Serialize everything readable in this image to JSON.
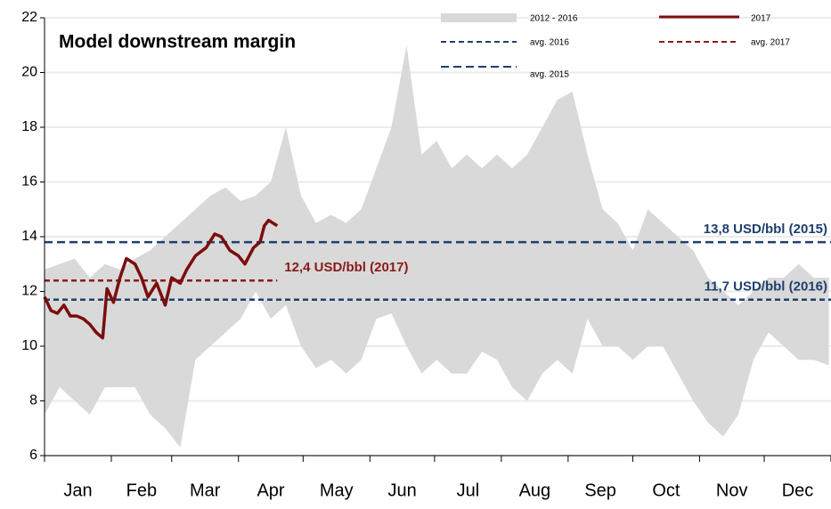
{
  "chart_data": {
    "type": "range_area",
    "title": "Model downstream margin",
    "ylim": [
      6,
      22
    ],
    "yticks": [
      6,
      8,
      10,
      12,
      14,
      16,
      18,
      20,
      22
    ],
    "xlim": [
      0,
      365
    ],
    "xticks": [
      0,
      31,
      59,
      90,
      120,
      151,
      181,
      212,
      243,
      273,
      304,
      334,
      365
    ],
    "categories": [
      "Jan",
      "Feb",
      "Mar",
      "Apr",
      "May",
      "Jun",
      "Jul",
      "Aug",
      "Sep",
      "Oct",
      "Nov",
      "Dec"
    ],
    "grid": true,
    "band": {
      "name": "2012 - 2016",
      "color": "#d9d9d9",
      "x": [
        0,
        7,
        14,
        21,
        28,
        35,
        42,
        49,
        56,
        63,
        70,
        77,
        84,
        91,
        98,
        105,
        112,
        119,
        126,
        133,
        140,
        147,
        154,
        161,
        168,
        175,
        182,
        189,
        196,
        203,
        210,
        217,
        224,
        231,
        238,
        245,
        252,
        259,
        266,
        273,
        280,
        287,
        294,
        301,
        308,
        315,
        322,
        329,
        336,
        343,
        350,
        357,
        364
      ],
      "upper": [
        12.8,
        13.0,
        13.2,
        12.5,
        13.0,
        12.8,
        13.2,
        13.5,
        14.0,
        14.5,
        15.0,
        15.5,
        15.8,
        15.3,
        15.5,
        16.0,
        18.0,
        15.5,
        14.5,
        14.8,
        14.5,
        15.0,
        16.5,
        18.0,
        21.0,
        17.0,
        17.5,
        16.5,
        17.0,
        16.5,
        17.0,
        16.5,
        17.0,
        18.0,
        19.0,
        19.3,
        17.0,
        15.0,
        14.5,
        13.5,
        15.0,
        14.5,
        14.0,
        13.5,
        12.5,
        12.0,
        11.5,
        12.0,
        12.5,
        12.5,
        13.0,
        12.5,
        12.5
      ],
      "lower": [
        7.5,
        8.5,
        8.0,
        7.5,
        8.5,
        8.5,
        8.5,
        7.5,
        7.0,
        6.3,
        9.5,
        10.0,
        10.5,
        11.0,
        12.0,
        11.0,
        11.5,
        10.0,
        9.2,
        9.5,
        9.0,
        9.5,
        11.0,
        11.2,
        10.0,
        9.0,
        9.5,
        9.0,
        9.0,
        9.8,
        9.5,
        8.5,
        8.0,
        9.0,
        9.5,
        9.0,
        11.0,
        10.0,
        10.0,
        9.5,
        10.0,
        10.0,
        9.0,
        8.0,
        7.2,
        6.7,
        7.5,
        9.5,
        10.5,
        10.0,
        9.5,
        9.5,
        9.3
      ]
    },
    "series": [
      {
        "name": "2017",
        "color": "#7b0d0d",
        "x": [
          0,
          3,
          6,
          9,
          12,
          15,
          18,
          21,
          24,
          27,
          29,
          32,
          35,
          38,
          42,
          45,
          48,
          52,
          56,
          59,
          63,
          66,
          70,
          75,
          79,
          82,
          86,
          90,
          93,
          97,
          100,
          102,
          104,
          108
        ],
        "values": [
          11.8,
          11.3,
          11.2,
          11.5,
          11.1,
          11.1,
          11.0,
          10.8,
          10.5,
          10.3,
          12.1,
          11.6,
          12.5,
          13.2,
          13.0,
          12.5,
          11.8,
          12.3,
          11.5,
          12.5,
          12.3,
          12.8,
          13.3,
          13.6,
          14.1,
          14.0,
          13.5,
          13.3,
          13.0,
          13.6,
          13.8,
          14.4,
          14.6,
          14.4
        ]
      }
    ],
    "reference_lines": [
      {
        "name": "avg. 2016",
        "value": 11.7,
        "label": "11,7 USD/bbl (2016)",
        "color": "#1f3f6e",
        "dash": "6 4"
      },
      {
        "name": "avg. 2017",
        "value": 12.4,
        "label": "12,4 USD/bbl (2017)",
        "color": "#8b1a1a",
        "dash": "6 4"
      },
      {
        "name": "avg. 2015",
        "value": 13.8,
        "label": "13,8 USD/bbl (2015)",
        "color": "#1f3f6e",
        "dash": "9 5"
      }
    ]
  }
}
